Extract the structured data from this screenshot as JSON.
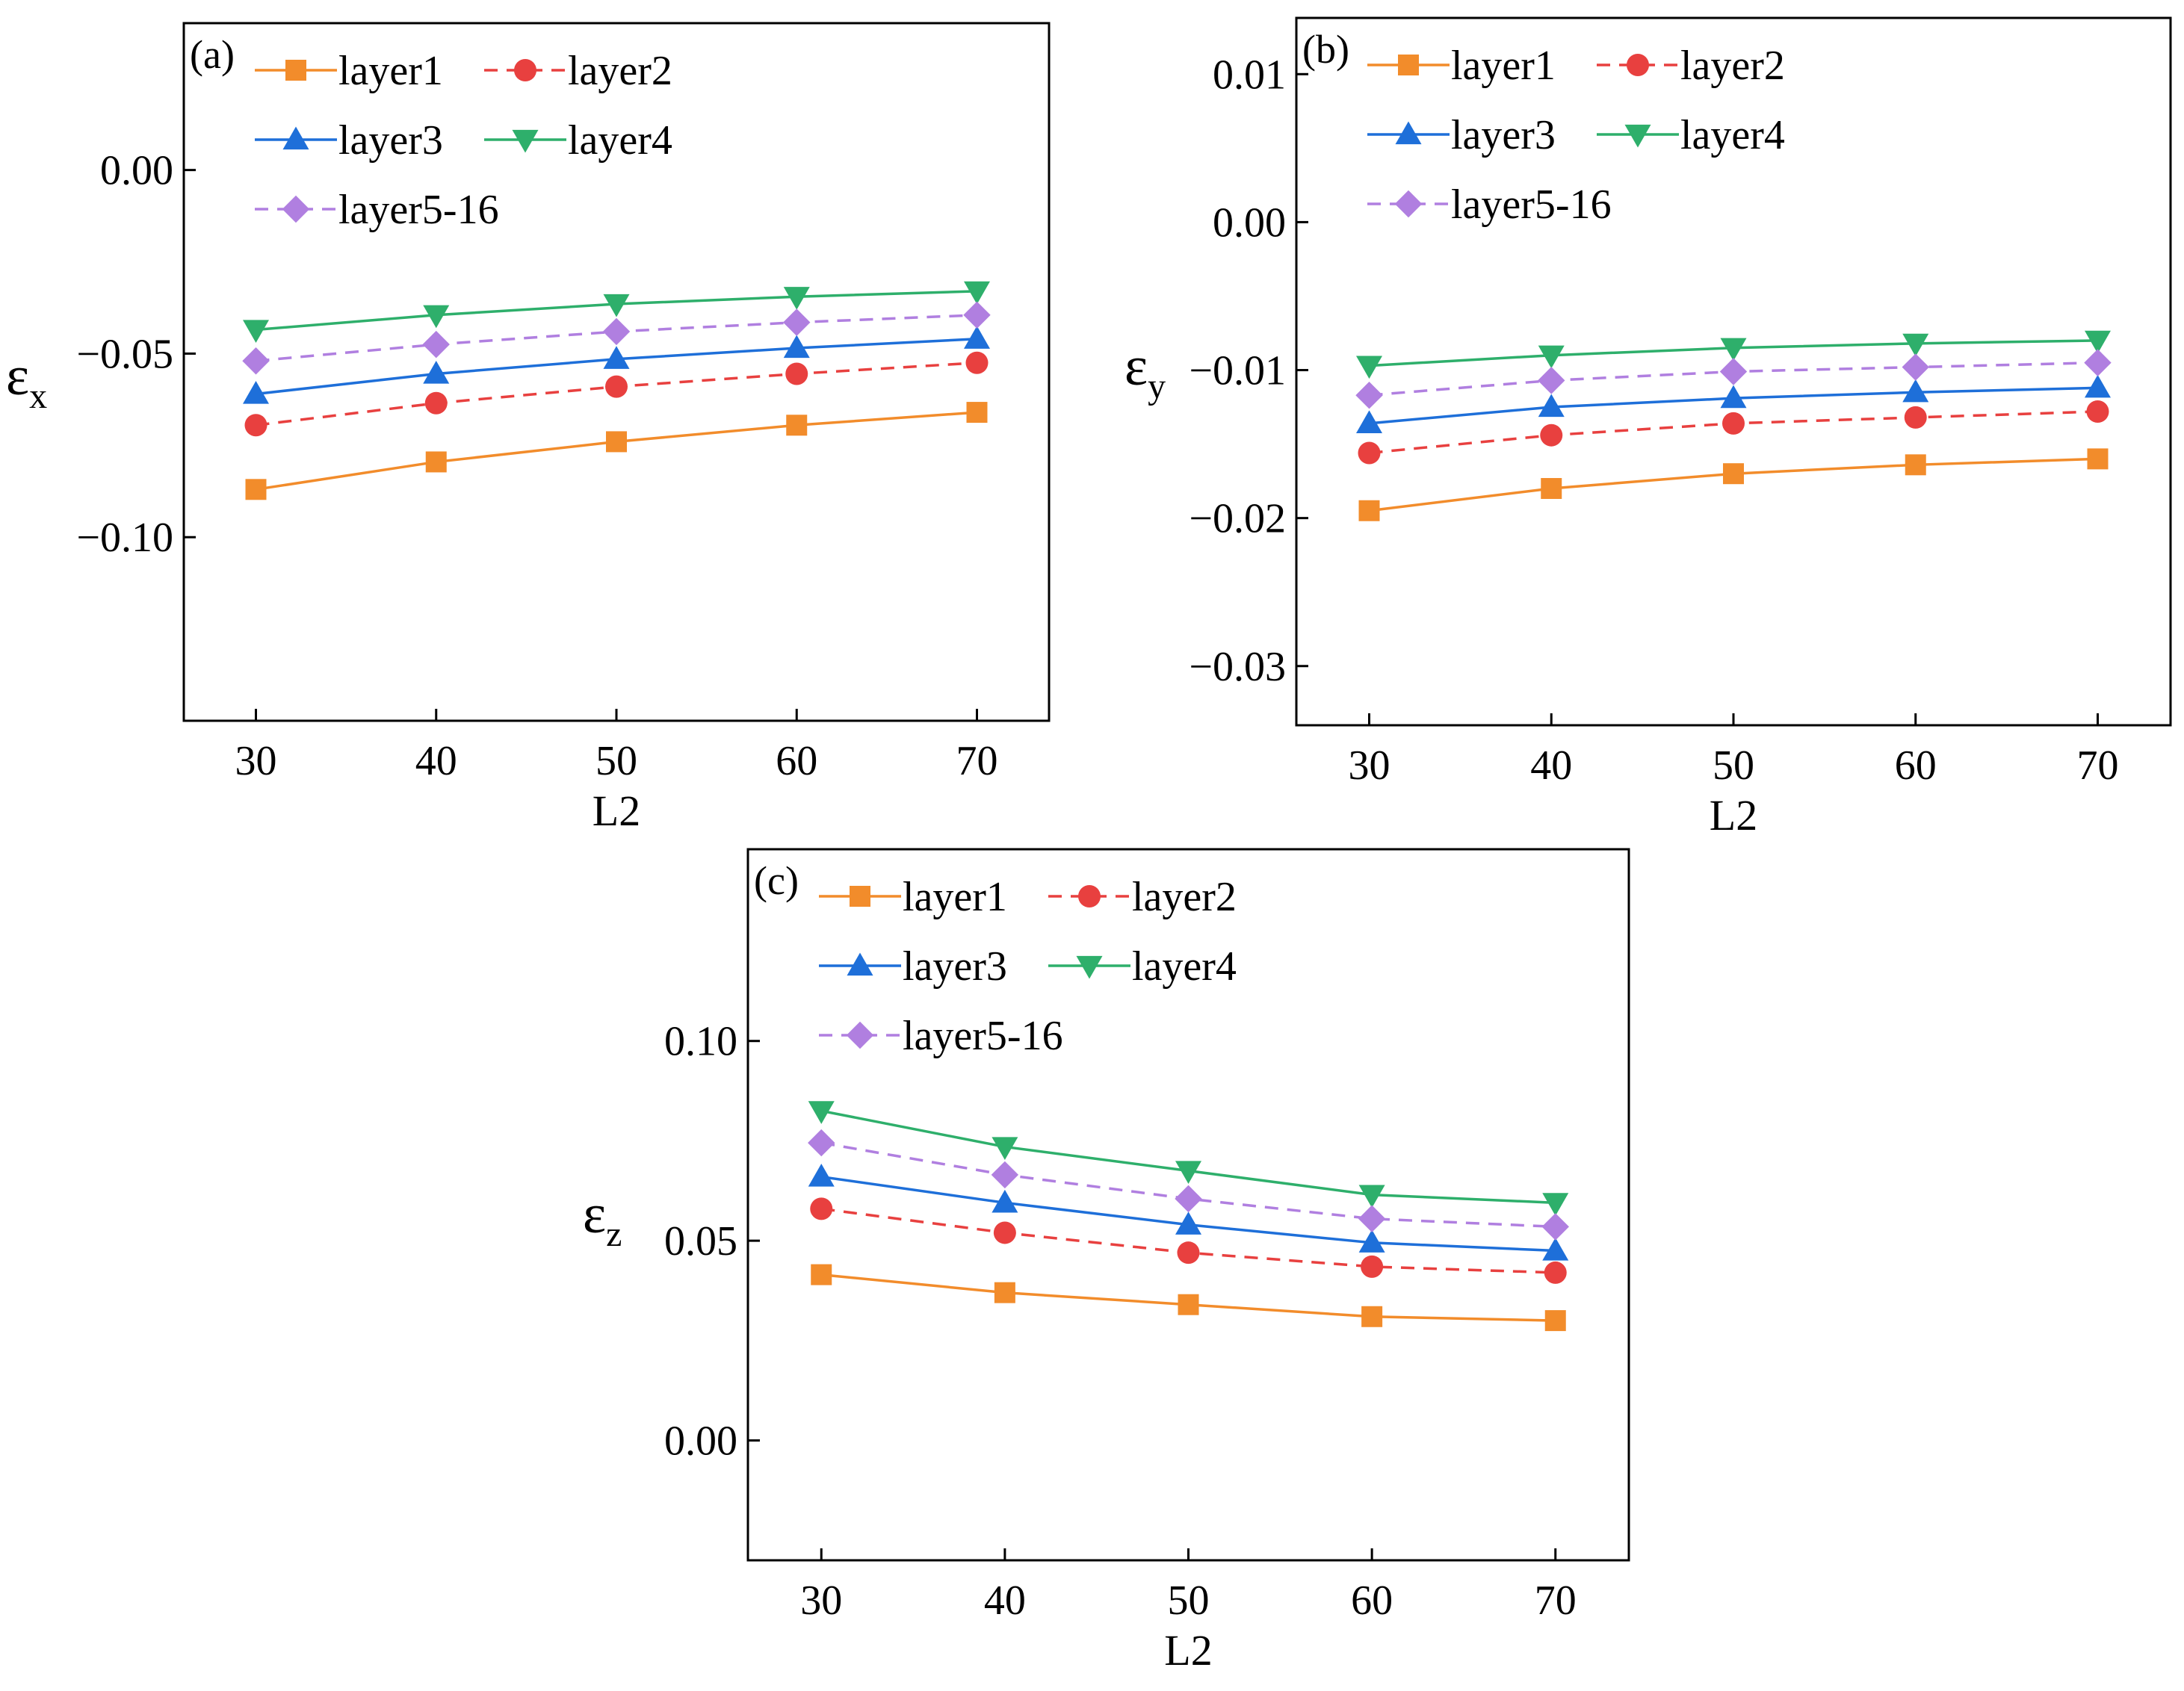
{
  "figure": {
    "x_label": "L2",
    "series_styles": [
      {
        "key": "layer1",
        "color": "#F28C2B",
        "marker": "square",
        "dash": "solid"
      },
      {
        "key": "layer2",
        "color": "#E8403F",
        "marker": "circle",
        "dash": "dashed"
      },
      {
        "key": "layer3",
        "color": "#1E6FD9",
        "marker": "triangle-up",
        "dash": "solid"
      },
      {
        "key": "layer4",
        "color": "#2EAF6B",
        "marker": "triangle-down",
        "dash": "solid"
      },
      {
        "key": "layer5-16",
        "color": "#B07FE0",
        "marker": "diamond",
        "dash": "dashed"
      }
    ]
  },
  "chart_data": [
    {
      "panel": "(a)",
      "type": "line",
      "title": "",
      "xlabel": "L2",
      "ylabel_symbol": "ε",
      "ylabel_sub": "x",
      "x": [
        30,
        40,
        50,
        60,
        70
      ],
      "xticks": [
        "30",
        "40",
        "50",
        "60",
        "70"
      ],
      "xlim": [
        26,
        74
      ],
      "ylim": [
        -0.15,
        0.04
      ],
      "yticks": [
        0.0,
        -0.05,
        -0.1
      ],
      "ytick_labels": [
        "0.00",
        "−0.05",
        "−0.10"
      ],
      "legend_position": "top-left",
      "series": [
        {
          "name": "layer1",
          "values": [
            -0.087,
            -0.0795,
            -0.074,
            -0.0695,
            -0.066
          ]
        },
        {
          "name": "layer2",
          "values": [
            -0.0695,
            -0.0635,
            -0.059,
            -0.0555,
            -0.0525
          ]
        },
        {
          "name": "layer3",
          "values": [
            -0.061,
            -0.0555,
            -0.0515,
            -0.0485,
            -0.046
          ]
        },
        {
          "name": "layer4",
          "values": [
            -0.0435,
            -0.0395,
            -0.0365,
            -0.0345,
            -0.033
          ]
        },
        {
          "name": "layer5-16",
          "values": [
            -0.052,
            -0.0475,
            -0.044,
            -0.0415,
            -0.0395
          ]
        }
      ]
    },
    {
      "panel": "(b)",
      "type": "line",
      "title": "",
      "xlabel": "L2",
      "ylabel_symbol": "ε",
      "ylabel_sub": "y",
      "x": [
        30,
        40,
        50,
        60,
        70
      ],
      "xticks": [
        "30",
        "40",
        "50",
        "60",
        "70"
      ],
      "xlim": [
        26,
        74
      ],
      "ylim": [
        -0.034,
        0.0138
      ],
      "yticks": [
        0.01,
        0.0,
        -0.01,
        -0.02,
        -0.03
      ],
      "ytick_labels": [
        "0.01",
        "0.00",
        "−0.01",
        "−0.02",
        "−0.03"
      ],
      "legend_position": "top-left",
      "series": [
        {
          "name": "layer1",
          "values": [
            -0.0195,
            -0.018,
            -0.017,
            -0.0164,
            -0.016
          ]
        },
        {
          "name": "layer2",
          "values": [
            -0.0156,
            -0.0144,
            -0.0136,
            -0.0132,
            -0.0128
          ]
        },
        {
          "name": "layer3",
          "values": [
            -0.0136,
            -0.0125,
            -0.0119,
            -0.0115,
            -0.0112
          ]
        },
        {
          "name": "layer4",
          "values": [
            -0.0097,
            -0.009,
            -0.0085,
            -0.0082,
            -0.008
          ]
        },
        {
          "name": "layer5-16",
          "values": [
            -0.0117,
            -0.0107,
            -0.0101,
            -0.0098,
            -0.0095
          ]
        }
      ]
    },
    {
      "panel": "(c)",
      "type": "line",
      "title": "",
      "xlabel": "L2",
      "ylabel_symbol": "ε",
      "ylabel_sub": "z",
      "x": [
        30,
        40,
        50,
        60,
        70
      ],
      "xticks": [
        "30",
        "40",
        "50",
        "60",
        "70"
      ],
      "xlim": [
        26,
        74
      ],
      "ylim": [
        -0.03,
        0.148
      ],
      "yticks": [
        0.1,
        0.05,
        0.0
      ],
      "ytick_labels": [
        "0.10",
        "0.05",
        "0.00"
      ],
      "legend_position": "top-left",
      "series": [
        {
          "name": "layer1",
          "values": [
            0.0415,
            0.037,
            0.034,
            0.031,
            0.03
          ]
        },
        {
          "name": "layer2",
          "values": [
            0.058,
            0.052,
            0.047,
            0.0435,
            0.042
          ]
        },
        {
          "name": "layer3",
          "values": [
            0.066,
            0.0595,
            0.054,
            0.0495,
            0.0475
          ]
        },
        {
          "name": "layer4",
          "values": [
            0.0825,
            0.0735,
            0.0675,
            0.0615,
            0.0595
          ]
        },
        {
          "name": "layer5-16",
          "values": [
            0.0745,
            0.0665,
            0.0605,
            0.0555,
            0.0535
          ]
        }
      ]
    }
  ]
}
